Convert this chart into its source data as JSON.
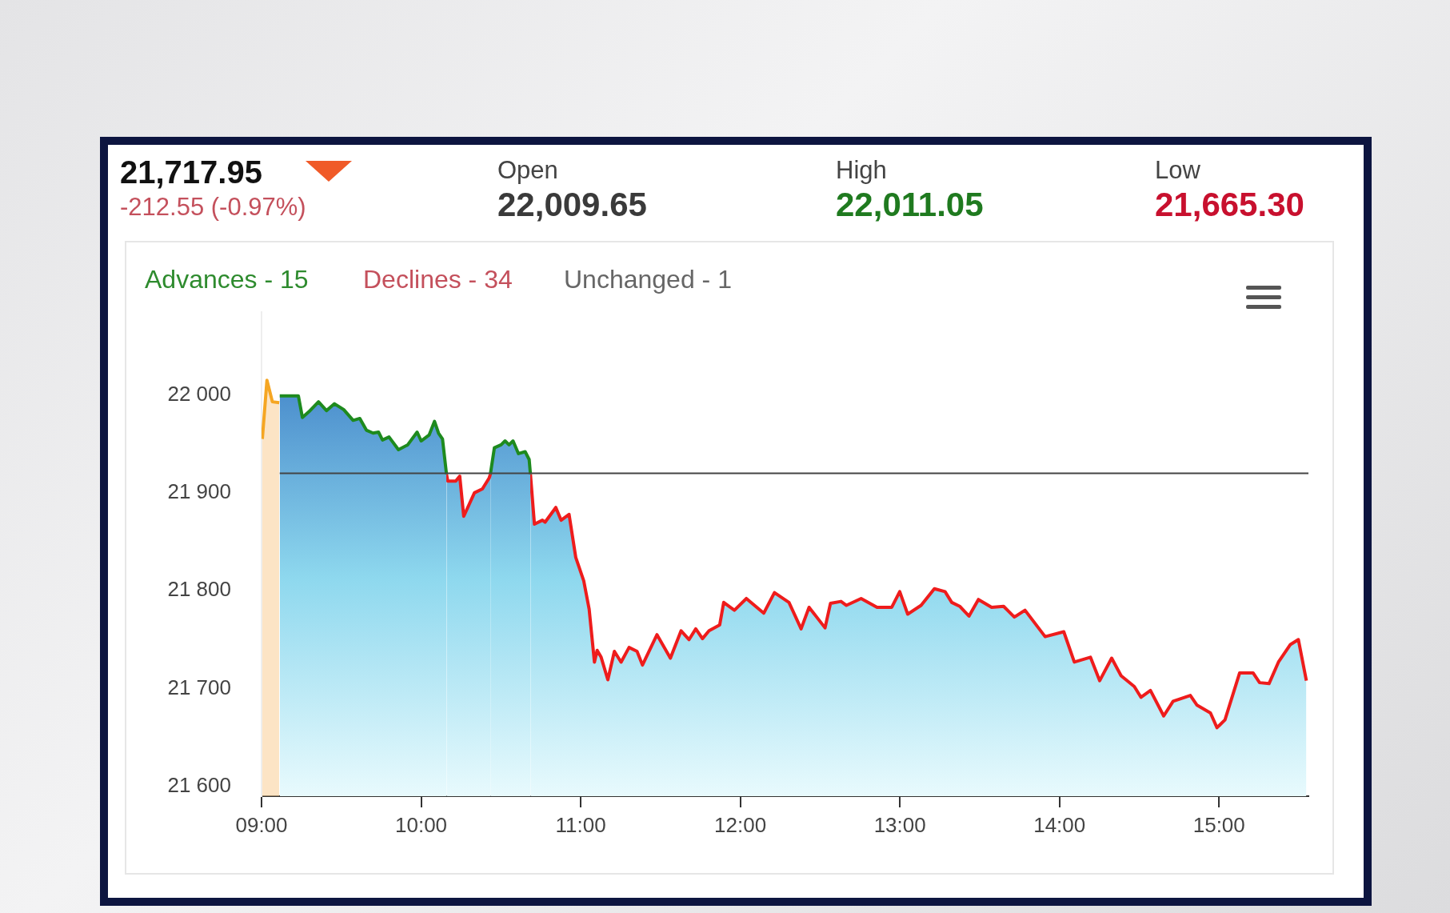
{
  "chart_data": {
    "type": "area",
    "annotations": [
      "21,717.95",
      "-212.55 (-0.97%)",
      "Open",
      "22,009.65",
      "High",
      "22,011.05",
      "Low",
      "21,665.30",
      "Advances - 15",
      "Declines - 34",
      "Unchanged - 1"
    ],
    "xlim": [
      9,
      15.56
    ],
    "xticks": [
      {
        "value": 9,
        "label": "09:00"
      },
      {
        "value": 10,
        "label": "10:00"
      },
      {
        "value": 11,
        "label": "11:00"
      },
      {
        "value": 12,
        "label": "12:00"
      },
      {
        "value": 13,
        "label": "13:00"
      },
      {
        "value": 14,
        "label": "14:00"
      },
      {
        "value": 15,
        "label": "15:00"
      }
    ],
    "ylim": [
      21590,
      22085
    ],
    "yticks": [
      {
        "value": 21600,
        "label": "21 600"
      },
      {
        "value": 21700,
        "label": "21 700"
      },
      {
        "value": 21800,
        "label": "21 800"
      },
      {
        "value": 21900,
        "label": "21 900"
      },
      {
        "value": 22000,
        "label": "22 000"
      }
    ],
    "grid": false,
    "ref_lines": [
      {
        "axis": "y",
        "value": 21920,
        "color": "#444444"
      }
    ],
    "series": [
      {
        "type": "area",
        "color": "#f5a623",
        "x": [
          9.005,
          9.034,
          9.068,
          9.111
        ],
        "values": [
          21955,
          22015,
          21993,
          21992
        ]
      },
      {
        "type": "area",
        "color": "#1e8a1e",
        "x": [
          9.114,
          9.231,
          9.256,
          9.298,
          9.357,
          9.407,
          9.457,
          9.515,
          9.574,
          9.616,
          9.657,
          9.699,
          9.733,
          9.758,
          9.799,
          9.858,
          9.916,
          9.975,
          10.0,
          10.05,
          10.084,
          10.109,
          10.134,
          10.159
        ],
        "values": [
          21999,
          21999,
          21977,
          21983,
          21993,
          21984,
          21991,
          21985,
          21974,
          21976,
          21964,
          21961,
          21962,
          21954,
          21957,
          21944,
          21949,
          21962,
          21953,
          21959,
          21973,
          21961,
          21955,
          21919
        ]
      },
      {
        "type": "area",
        "color": "#ee1c1c",
        "x": [
          10.159,
          10.167,
          10.217,
          10.242,
          10.267,
          10.334,
          10.384,
          10.426,
          10.434
        ],
        "values": [
          21919,
          21912,
          21912,
          21917,
          21876,
          21900,
          21904,
          21915,
          21919
        ]
      },
      {
        "type": "area",
        "color": "#1e8a1e",
        "x": [
          10.434,
          10.459,
          10.501,
          10.526,
          10.551,
          10.576,
          10.61,
          10.652,
          10.677,
          10.685
        ],
        "values": [
          21919,
          21946,
          21949,
          21953,
          21949,
          21953,
          21940,
          21942,
          21934,
          21919
        ]
      },
      {
        "type": "area",
        "color": "#ee1c1c",
        "x": [
          10.685,
          10.71,
          10.76,
          10.777,
          10.844,
          10.877,
          10.927,
          10.969,
          11.019,
          11.053,
          11.086,
          11.103,
          11.128,
          11.17,
          11.211,
          11.253,
          11.303,
          11.353,
          11.387,
          11.478,
          11.562,
          11.629,
          11.679,
          11.721,
          11.763,
          11.804,
          11.871,
          11.896,
          11.963,
          12.038,
          12.147,
          12.214,
          12.305,
          12.381,
          12.431,
          12.531,
          12.565,
          12.631,
          12.665,
          12.757,
          12.857,
          12.949,
          12.999,
          13.049,
          13.133,
          13.216,
          13.283,
          13.325,
          13.375,
          13.433,
          13.492,
          13.575,
          13.65,
          13.717,
          13.784,
          13.91,
          14.027,
          14.093,
          14.194,
          14.252,
          14.327,
          14.386,
          14.469,
          14.511,
          14.57,
          14.653,
          14.712,
          14.82,
          14.862,
          14.946,
          14.987,
          15.037,
          15.129,
          15.213,
          15.254,
          15.313,
          15.372,
          15.447,
          15.497,
          15.547
        ],
        "values": [
          21919,
          21868,
          21872,
          21870,
          21885,
          21872,
          21878,
          21834,
          21810,
          21781,
          21727,
          21739,
          21732,
          21709,
          21738,
          21727,
          21742,
          21738,
          21724,
          21755,
          21731,
          21759,
          21750,
          21761,
          21751,
          21759,
          21765,
          21788,
          21780,
          21792,
          21777,
          21798,
          21788,
          21761,
          21783,
          21762,
          21787,
          21789,
          21785,
          21792,
          21783,
          21783,
          21799,
          21776,
          21785,
          21802,
          21799,
          21788,
          21784,
          21774,
          21791,
          21783,
          21784,
          21773,
          21780,
          21753,
          21758,
          21727,
          21732,
          21708,
          21731,
          21713,
          21702,
          21691,
          21698,
          21672,
          21687,
          21693,
          21683,
          21675,
          21660,
          21668,
          21716,
          21716,
          21706,
          21705,
          21727,
          21745,
          21750,
          21708
        ]
      }
    ]
  }
}
